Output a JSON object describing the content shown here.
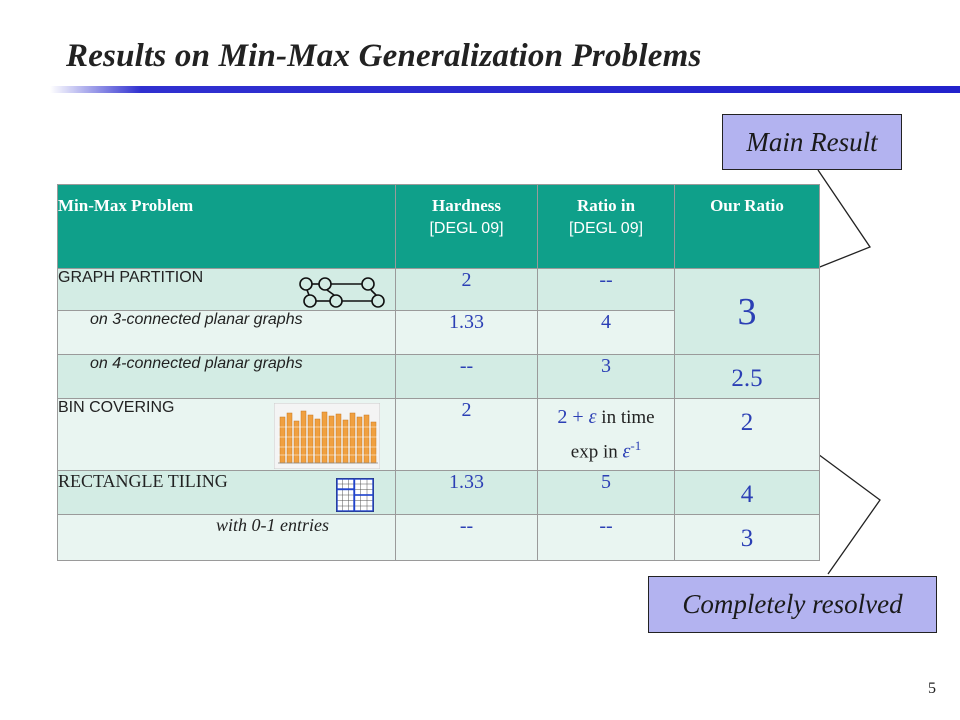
{
  "title": "Results on Min-Max Generalization Problems",
  "callouts": {
    "main_result": "Main Result",
    "completely_resolved": "Completely resolved"
  },
  "table": {
    "headers": {
      "problem": "Min-Max Problem",
      "hardness": "Hardness",
      "hardness_ref": "[DEGL 09]",
      "ratio_in": "Ratio in",
      "ratio_in_ref": "[DEGL 09]",
      "our_ratio": "Our Ratio"
    },
    "rows": [
      {
        "problem": "GRAPH PARTITION",
        "hardness": "2",
        "ratio_in": "--",
        "our_ratio": "3"
      },
      {
        "problem": "on 3-connected planar graphs",
        "hardness": "1.33",
        "ratio_in": "4"
      },
      {
        "problem": "on 4-connected planar graphs",
        "hardness": "--",
        "ratio_in": "3",
        "our_ratio": "2.5"
      },
      {
        "problem": "BIN COVERING",
        "hardness": "2",
        "ratio_in_a": "2 + ",
        "ratio_in_eps": "ε",
        "ratio_in_b": " in time",
        "ratio_in_c": "exp in ",
        "ratio_in_eps2": "ε",
        "ratio_in_sup": "-1",
        "our_ratio": "2"
      },
      {
        "problem": "RECTANGLE TILING",
        "hardness": "1.33",
        "ratio_in": "5",
        "our_ratio": "4"
      },
      {
        "problem": "with 0-1 entries",
        "hardness": "--",
        "ratio_in": "--",
        "our_ratio": "3"
      }
    ]
  },
  "page_number": "5",
  "colors": {
    "header_bg": "#0fa08a",
    "row_dark": "#d3ece4",
    "row_light": "#e9f5f1",
    "callout_bg": "#b3b3f0",
    "value_text": "#2b3fb5",
    "rule": "#2222cc"
  },
  "icons": [
    "graph-partition-icon",
    "bin-covering-chart-icon",
    "rectangle-tiling-grid-icon"
  ]
}
